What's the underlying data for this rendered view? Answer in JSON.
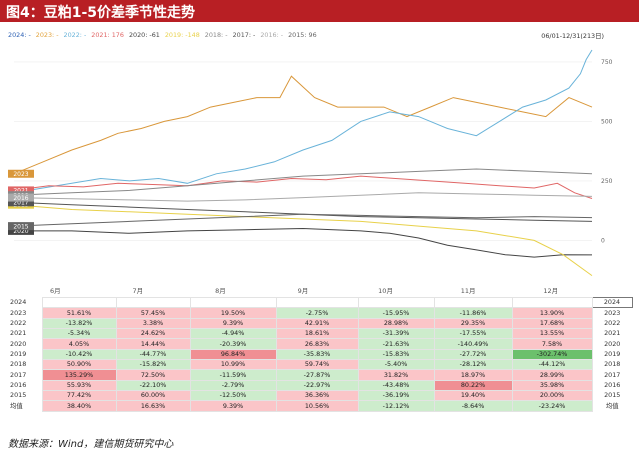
{
  "title": "图4：豆粕1-5价差季节性走势",
  "source": "数据来源：Wind，建信期货研究中心",
  "colors": {
    "title_bg": "#b81f24",
    "pos_strong": "#f08f93",
    "pos": "#fbc5c8",
    "neg": "#cdeccc",
    "neg_strong": "#6cc06c"
  },
  "chart_data": {
    "type": "line",
    "range_label": "06/01-12/31(213日)",
    "x_categories": [
      "6月",
      "7月",
      "8月",
      "9月",
      "10月",
      "11月",
      "12月"
    ],
    "y_ticks": [
      750,
      500,
      250,
      0
    ],
    "legend": [
      {
        "label": "2024: -",
        "color": "#2b5fb3"
      },
      {
        "label": "2023: -",
        "color": "#e2a33c"
      },
      {
        "label": "2022: -",
        "color": "#69b3d9"
      },
      {
        "label": "2021: 176",
        "color": "#e06666"
      },
      {
        "label": "2020: -61",
        "color": "#444444"
      },
      {
        "label": "2019: -148",
        "color": "#e8d14a"
      },
      {
        "label": "2018: -",
        "color": "#888888"
      },
      {
        "label": "2017: -",
        "color": "#555555"
      },
      {
        "label": "2016: -",
        "color": "#aaaaaa"
      },
      {
        "label": "2015: 96",
        "color": "#666666"
      }
    ],
    "series": [
      {
        "name": "2023",
        "color": "#d9973a",
        "x": [
          0,
          5,
          10,
          15,
          18,
          22,
          26,
          30,
          34,
          38,
          42,
          46,
          48,
          52,
          56,
          60,
          64,
          68,
          72,
          76,
          80,
          84,
          88,
          92,
          96,
          100
        ],
        "y": [
          280,
          330,
          380,
          420,
          450,
          470,
          500,
          520,
          560,
          580,
          600,
          600,
          690,
          600,
          560,
          560,
          560,
          520,
          560,
          600,
          580,
          560,
          540,
          520,
          600,
          560
        ]
      },
      {
        "name": "2022",
        "color": "#69b3d9",
        "x": [
          0,
          5,
          10,
          15,
          20,
          25,
          30,
          35,
          40,
          45,
          50,
          55,
          60,
          65,
          70,
          75,
          80,
          84,
          88,
          92,
          96,
          98,
          99,
          100
        ],
        "y": [
          200,
          220,
          240,
          260,
          250,
          260,
          240,
          280,
          300,
          330,
          380,
          420,
          500,
          540,
          520,
          470,
          440,
          500,
          560,
          590,
          640,
          700,
          760,
          800
        ]
      },
      {
        "name": "2021",
        "color": "#e06666",
        "x": [
          0,
          6,
          12,
          18,
          24,
          30,
          36,
          42,
          48,
          54,
          60,
          66,
          72,
          78,
          84,
          90,
          94,
          97,
          100
        ],
        "y": [
          210,
          230,
          225,
          240,
          235,
          230,
          250,
          245,
          260,
          255,
          270,
          260,
          250,
          240,
          230,
          220,
          240,
          200,
          176
        ]
      },
      {
        "name": "2020",
        "color": "#444444",
        "x": [
          0,
          10,
          20,
          30,
          40,
          50,
          60,
          65,
          70,
          75,
          80,
          85,
          90,
          95,
          100
        ],
        "y": [
          40,
          40,
          30,
          40,
          45,
          50,
          40,
          30,
          10,
          -20,
          -40,
          -60,
          -70,
          -60,
          -61
        ]
      },
      {
        "name": "2019",
        "color": "#e8d14a",
        "x": [
          0,
          10,
          20,
          30,
          40,
          50,
          60,
          70,
          80,
          85,
          90,
          95,
          100
        ],
        "y": [
          150,
          130,
          120,
          110,
          100,
          90,
          80,
          60,
          40,
          20,
          0,
          -60,
          -148
        ]
      },
      {
        "name": "2018",
        "color": "#888888",
        "x": [
          0,
          10,
          20,
          30,
          40,
          50,
          60,
          70,
          80,
          90,
          100
        ],
        "y": [
          190,
          200,
          210,
          230,
          250,
          270,
          280,
          290,
          300,
          290,
          280
        ]
      },
      {
        "name": "2017",
        "color": "#555555",
        "x": [
          0,
          10,
          20,
          30,
          40,
          50,
          60,
          70,
          80,
          90,
          100
        ],
        "y": [
          160,
          150,
          140,
          130,
          120,
          110,
          100,
          95,
          90,
          85,
          80
        ]
      },
      {
        "name": "2016",
        "color": "#aaaaaa",
        "x": [
          0,
          10,
          20,
          30,
          40,
          50,
          60,
          70,
          80,
          90,
          100
        ],
        "y": [
          180,
          175,
          170,
          165,
          170,
          180,
          190,
          200,
          195,
          190,
          185
        ]
      },
      {
        "name": "2015",
        "color": "#666666",
        "x": [
          0,
          10,
          20,
          30,
          40,
          50,
          60,
          70,
          80,
          90,
          100
        ],
        "y": [
          60,
          70,
          80,
          90,
          100,
          110,
          105,
          100,
          95,
          100,
          96
        ]
      }
    ]
  },
  "table": {
    "rows": [
      {
        "year": "2024",
        "cells": [
          "",
          "",
          "",
          "",
          "",
          "",
          ""
        ]
      },
      {
        "year": "2023",
        "cells": [
          "51.61%",
          "57.45%",
          "19.50%",
          "-2.75%",
          "-15.95%",
          "-11.86%",
          "13.90%"
        ]
      },
      {
        "year": "2022",
        "cells": [
          "-13.82%",
          "3.38%",
          "9.39%",
          "42.91%",
          "28.98%",
          "29.35%",
          "17.68%"
        ]
      },
      {
        "year": "2021",
        "cells": [
          "-5.34%",
          "24.62%",
          "-4.94%",
          "18.61%",
          "-31.39%",
          "-17.55%",
          "13.55%"
        ]
      },
      {
        "year": "2020",
        "cells": [
          "4.05%",
          "14.44%",
          "-20.39%",
          "26.83%",
          "-21.63%",
          "-140.49%",
          "7.58%"
        ]
      },
      {
        "year": "2019",
        "cells": [
          "-10.42%",
          "-44.77%",
          "96.84%",
          "-35.83%",
          "-15.83%",
          "-27.72%",
          "-302.74%"
        ]
      },
      {
        "year": "2018",
        "cells": [
          "50.90%",
          "-15.82%",
          "10.99%",
          "59.74%",
          "-5.40%",
          "-28.12%",
          "-44.12%"
        ]
      },
      {
        "year": "2017",
        "cells": [
          "135.29%",
          "72.50%",
          "-11.59%",
          "-27.87%",
          "31.82%",
          "18.97%",
          "28.99%"
        ]
      },
      {
        "year": "2016",
        "cells": [
          "55.93%",
          "-22.10%",
          "-2.79%",
          "-22.97%",
          "-43.48%",
          "80.22%",
          "35.98%"
        ]
      },
      {
        "year": "2015",
        "cells": [
          "77.42%",
          "60.00%",
          "-12.50%",
          "36.36%",
          "-36.19%",
          "19.40%",
          "20.00%"
        ]
      },
      {
        "year": "均值",
        "cells": [
          "38.40%",
          "16.63%",
          "9.39%",
          "10.56%",
          "-12.12%",
          "-8.64%",
          "-23.24%"
        ]
      }
    ]
  }
}
